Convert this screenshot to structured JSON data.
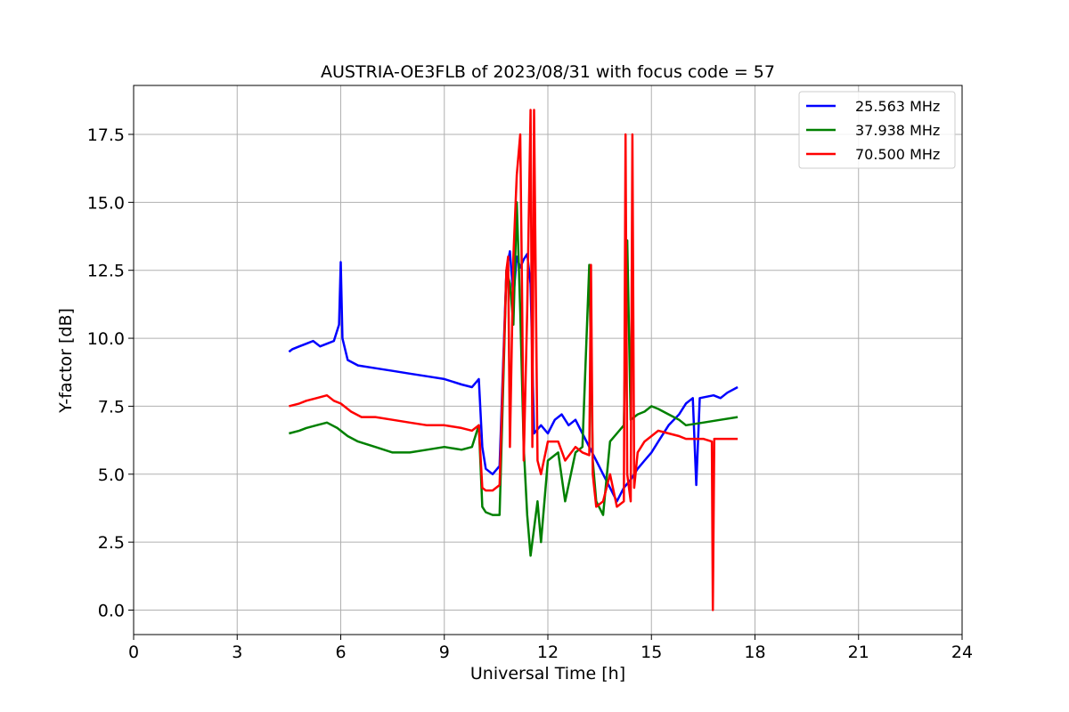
{
  "chart_data": {
    "type": "line",
    "title": "AUSTRIA-OE3FLB of 2023/08/31 with focus code = 57",
    "xlabel": "Universal Time [h]",
    "ylabel": "Y-factor [dB]",
    "xlim": [
      0,
      24
    ],
    "ylim": [
      -0.9,
      19.3
    ],
    "xticks": [
      0,
      3,
      6,
      9,
      12,
      15,
      18,
      21,
      24
    ],
    "yticks": [
      0.0,
      2.5,
      5.0,
      7.5,
      10.0,
      12.5,
      15.0,
      17.5
    ],
    "xtick_labels": [
      "0",
      "3",
      "6",
      "9",
      "12",
      "15",
      "18",
      "21",
      "24"
    ],
    "ytick_labels": [
      "0.0",
      "2.5",
      "5.0",
      "7.5",
      "10.0",
      "12.5",
      "15.0",
      "17.5"
    ],
    "grid": true,
    "legend_position": "top-right",
    "series": [
      {
        "name": "25.563 MHz",
        "color": "#0000ff",
        "x": [
          4.5,
          4.6,
          4.8,
          5.0,
          5.2,
          5.4,
          5.6,
          5.8,
          5.95,
          6.0,
          6.05,
          6.2,
          6.5,
          7.0,
          7.5,
          8.0,
          8.5,
          9.0,
          9.5,
          9.8,
          10.0,
          10.1,
          10.2,
          10.4,
          10.6,
          10.8,
          10.9,
          11.0,
          11.1,
          11.2,
          11.3,
          11.4,
          11.5,
          11.6,
          11.8,
          12.0,
          12.2,
          12.4,
          12.6,
          12.8,
          13.0,
          13.2,
          13.4,
          13.6,
          13.8,
          14.0,
          14.2,
          14.4,
          14.6,
          14.8,
          15.0,
          15.2,
          15.5,
          15.8,
          16.0,
          16.2,
          16.3,
          16.4,
          16.8,
          17.0,
          17.2,
          17.5
        ],
        "y": [
          9.5,
          9.6,
          9.7,
          9.8,
          9.9,
          9.7,
          9.8,
          9.9,
          10.5,
          12.8,
          10.0,
          9.2,
          9.0,
          8.9,
          8.8,
          8.7,
          8.6,
          8.5,
          8.3,
          8.2,
          8.5,
          6.0,
          5.2,
          5.0,
          5.3,
          12.5,
          13.2,
          11.5,
          13.0,
          12.6,
          12.9,
          13.1,
          12.0,
          6.5,
          6.8,
          6.5,
          7.0,
          7.2,
          6.8,
          7.0,
          6.5,
          6.0,
          5.5,
          5.0,
          4.5,
          4.0,
          4.5,
          4.8,
          5.2,
          5.5,
          5.8,
          6.2,
          6.8,
          7.2,
          7.6,
          7.8,
          4.6,
          7.8,
          7.9,
          7.8,
          8.0,
          8.2
        ]
      },
      {
        "name": "37.938 MHz",
        "color": "#008000",
        "x": [
          4.5,
          4.8,
          5.0,
          5.3,
          5.6,
          5.9,
          6.2,
          6.5,
          7.0,
          7.5,
          8.0,
          8.5,
          9.0,
          9.5,
          9.8,
          10.0,
          10.1,
          10.2,
          10.4,
          10.6,
          10.8,
          10.9,
          11.0,
          11.1,
          11.2,
          11.3,
          11.4,
          11.5,
          11.6,
          11.7,
          11.8,
          12.0,
          12.3,
          12.5,
          12.8,
          13.0,
          13.2,
          13.3,
          13.4,
          13.6,
          13.8,
          14.0,
          14.2,
          14.3,
          14.4,
          14.6,
          14.8,
          15.0,
          15.2,
          15.5,
          15.8,
          16.0,
          16.5,
          17.0,
          17.5
        ],
        "y": [
          6.5,
          6.6,
          6.7,
          6.8,
          6.9,
          6.7,
          6.4,
          6.2,
          6.0,
          5.8,
          5.8,
          5.9,
          6.0,
          5.9,
          6.0,
          6.8,
          3.8,
          3.6,
          3.5,
          3.5,
          12.5,
          12.0,
          10.5,
          15.0,
          11.0,
          6.0,
          3.5,
          2.0,
          3.0,
          4.0,
          2.5,
          5.5,
          5.8,
          4.0,
          5.8,
          6.0,
          12.7,
          5.5,
          4.0,
          3.5,
          6.2,
          6.5,
          6.8,
          13.6,
          7.0,
          7.2,
          7.3,
          7.5,
          7.4,
          7.2,
          7.0,
          6.8,
          6.9,
          7.0,
          7.1
        ]
      },
      {
        "name": "70.500 MHz",
        "color": "#ff0000",
        "x": [
          4.5,
          4.8,
          5.0,
          5.3,
          5.6,
          5.8,
          6.0,
          6.3,
          6.6,
          7.0,
          7.5,
          8.0,
          8.5,
          9.0,
          9.5,
          9.8,
          10.0,
          10.1,
          10.2,
          10.4,
          10.6,
          10.8,
          10.85,
          10.9,
          11.0,
          11.1,
          11.2,
          11.25,
          11.3,
          11.4,
          11.5,
          11.55,
          11.6,
          11.7,
          11.8,
          12.0,
          12.3,
          12.5,
          12.8,
          13.0,
          13.2,
          13.25,
          13.3,
          13.4,
          13.6,
          13.8,
          14.0,
          14.2,
          14.25,
          14.3,
          14.4,
          14.45,
          14.5,
          14.6,
          14.8,
          15.0,
          15.2,
          15.5,
          15.8,
          16.0,
          16.2,
          16.5,
          16.75,
          16.78,
          16.82,
          17.0,
          17.5
        ],
        "y": [
          7.5,
          7.6,
          7.7,
          7.8,
          7.9,
          7.7,
          7.6,
          7.3,
          7.1,
          7.1,
          7.0,
          6.9,
          6.8,
          6.8,
          6.7,
          6.6,
          6.8,
          4.5,
          4.4,
          4.4,
          4.6,
          12.5,
          13.0,
          6.0,
          13.0,
          16.0,
          17.5,
          12.0,
          5.5,
          11.0,
          18.4,
          6.0,
          18.4,
          5.5,
          5.0,
          6.2,
          6.2,
          5.5,
          6.0,
          5.8,
          5.7,
          12.7,
          5.0,
          3.8,
          4.0,
          5.0,
          3.8,
          4.0,
          17.5,
          5.0,
          4.0,
          17.5,
          4.5,
          5.8,
          6.2,
          6.4,
          6.6,
          6.5,
          6.4,
          6.3,
          6.3,
          6.3,
          6.2,
          0.0,
          6.3,
          6.3,
          6.3
        ]
      }
    ]
  }
}
